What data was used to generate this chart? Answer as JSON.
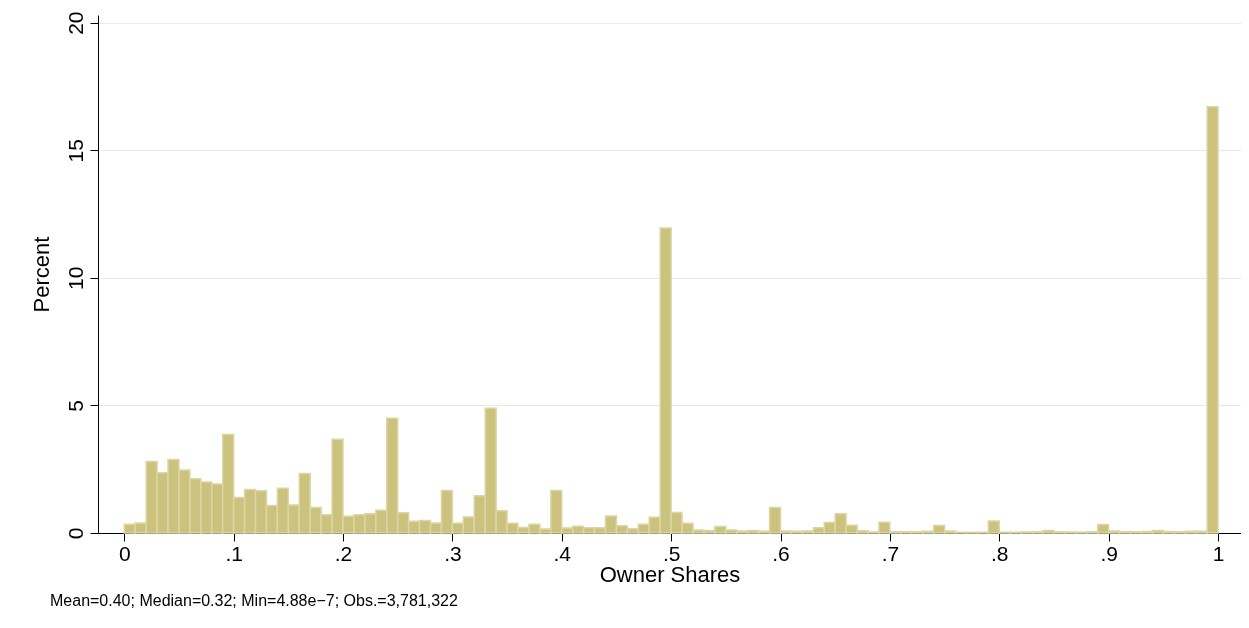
{
  "chart_data": {
    "type": "histogram",
    "xlabel": "Owner Shares",
    "ylabel": "Percent",
    "bins": [
      0,
      0.01,
      0.02,
      0.03,
      0.04,
      0.05,
      0.06,
      0.07,
      0.08,
      0.09,
      0.1,
      0.11,
      0.12,
      0.13,
      0.14,
      0.15,
      0.16,
      0.17,
      0.18,
      0.19,
      0.2,
      0.21,
      0.22,
      0.23,
      0.24,
      0.25,
      0.26,
      0.27,
      0.28,
      0.29,
      0.3,
      0.31,
      0.32,
      0.33,
      0.34,
      0.35,
      0.36,
      0.37,
      0.38,
      0.39,
      0.4,
      0.41,
      0.42,
      0.43,
      0.44,
      0.45,
      0.46,
      0.47,
      0.48,
      0.49,
      0.5,
      0.51,
      0.52,
      0.53,
      0.54,
      0.55,
      0.56,
      0.57,
      0.58,
      0.59,
      0.6,
      0.61,
      0.62,
      0.63,
      0.64,
      0.65,
      0.66,
      0.67,
      0.68,
      0.69,
      0.7,
      0.71,
      0.72,
      0.73,
      0.74,
      0.75,
      0.76,
      0.77,
      0.78,
      0.79,
      0.8,
      0.81,
      0.82,
      0.83,
      0.84,
      0.85,
      0.86,
      0.87,
      0.88,
      0.89,
      0.9,
      0.91,
      0.92,
      0.93,
      0.94,
      0.95,
      0.96,
      0.97,
      0.98,
      0.99,
      1
    ],
    "values": [
      0.34,
      0.39,
      2.8,
      2.36,
      2.88,
      2.47,
      2.13,
      2.0,
      1.92,
      3.86,
      1.39,
      1.7,
      1.66,
      1.08,
      1.75,
      1.1,
      2.33,
      1.0,
      0.72,
      3.67,
      0.66,
      0.72,
      0.75,
      0.89,
      4.5,
      0.79,
      0.46,
      0.49,
      0.39,
      1.67,
      0.38,
      0.63,
      1.46,
      4.89,
      0.87,
      0.38,
      0.22,
      0.34,
      0.16,
      1.67,
      0.2,
      0.26,
      0.21,
      0.21,
      0.67,
      0.28,
      0.17,
      0.34,
      0.62,
      11.95,
      0.8,
      0.38,
      0.12,
      0.1,
      0.25,
      0.12,
      0.08,
      0.1,
      0.07,
      1.0,
      0.08,
      0.07,
      0.08,
      0.21,
      0.41,
      0.75,
      0.3,
      0.09,
      0.04,
      0.42,
      0.05,
      0.05,
      0.05,
      0.07,
      0.29,
      0.08,
      0.03,
      0.03,
      0.03,
      0.47,
      0.03,
      0.03,
      0.04,
      0.05,
      0.1,
      0.05,
      0.04,
      0.03,
      0.05,
      0.33,
      0.08,
      0.05,
      0.05,
      0.06,
      0.1,
      0.06,
      0.05,
      0.07,
      0.07,
      16.7
    ],
    "color": "#cbc27e",
    "xlim": [
      -0.024,
      1.021
    ],
    "xticks": [
      0,
      {
        "value": 0.1,
        "label": ".1"
      },
      {
        "value": 0.2,
        "label": ".2"
      },
      {
        "value": 0.3,
        "label": ".3"
      },
      {
        "value": 0.4,
        "label": ".4"
      },
      {
        "value": 0.5,
        "label": ".5"
      },
      {
        "value": 0.6,
        "label": ".6"
      },
      {
        "value": 0.7,
        "label": ".7"
      },
      {
        "value": 0.8,
        "label": ".8"
      },
      {
        "value": 0.9,
        "label": ".9"
      },
      1
    ],
    "ylim": [
      0,
      20.3
    ],
    "yticks": [
      0,
      5,
      10,
      15,
      20
    ],
    "grid": "y",
    "annotations": [
      "Mean=0.40; Median=0.32; Min=4.88e−7; Obs.=3,781,322"
    ]
  }
}
